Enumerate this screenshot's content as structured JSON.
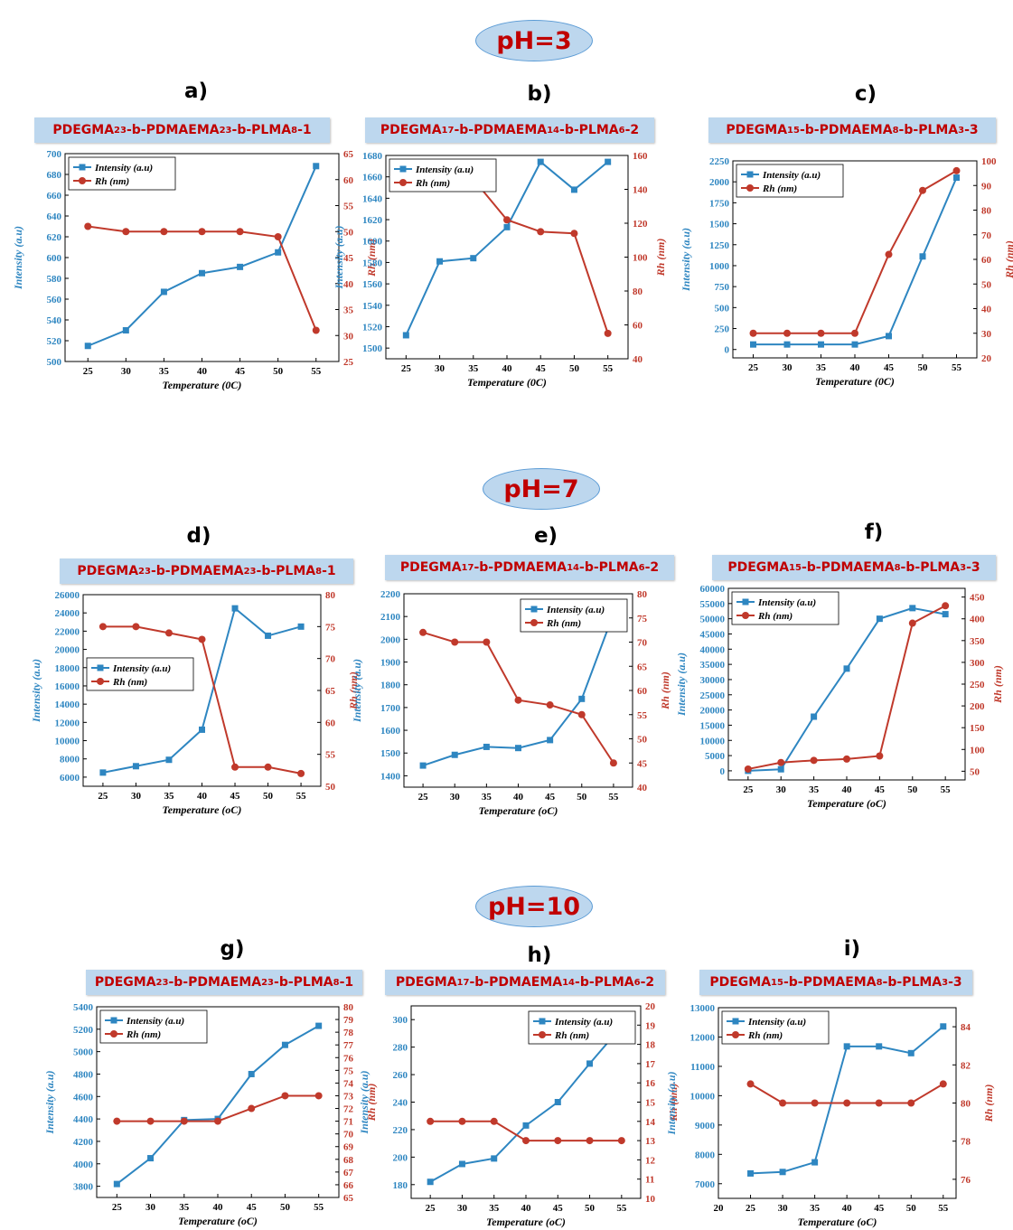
{
  "sections": [
    {
      "label": "pH=3",
      "panels": [
        {
          "letter": "a)",
          "title_pre": "PDEGMA",
          "title_parts": [
            [
              "PDEGMA",
              "23"
            ],
            [
              "-b-PDMAEMA",
              "23"
            ],
            [
              "-b-PLMA",
              "8"
            ],
            [
              "-1",
              ""
            ]
          ]
        },
        {
          "letter": "b)",
          "title_parts": [
            [
              "PDEGMA",
              "17"
            ],
            [
              "-b-PDMAEMA",
              "14"
            ],
            [
              "-b-PLMA",
              "6"
            ],
            [
              "-2",
              ""
            ]
          ]
        },
        {
          "letter": "c)",
          "title_parts": [
            [
              "PDEGMA",
              "15"
            ],
            [
              "-b-PDMAEMA",
              "8"
            ],
            [
              "-b-PLMA",
              "3"
            ],
            [
              "-3",
              ""
            ]
          ]
        }
      ]
    },
    {
      "label": "pH=7",
      "panels": [
        {
          "letter": "d)",
          "title_parts": [
            [
              "PDEGMA",
              "23"
            ],
            [
              "-b-PDMAEMA",
              "23"
            ],
            [
              "-b-PLMA",
              "8"
            ],
            [
              "-1",
              ""
            ]
          ]
        },
        {
          "letter": "e)",
          "title_parts": [
            [
              "PDEGMA",
              "17"
            ],
            [
              "-b-PDMAEMA",
              "14"
            ],
            [
              "-b-PLMA",
              "6"
            ],
            [
              "-2",
              ""
            ]
          ]
        },
        {
          "letter": "f)",
          "title_parts": [
            [
              "PDEGMA",
              "15"
            ],
            [
              "-b-PDMAEMA",
              "8"
            ],
            [
              "-b-PLMA",
              "3"
            ],
            [
              "-3",
              ""
            ]
          ]
        }
      ]
    },
    {
      "label": "pH=10",
      "panels": [
        {
          "letter": "g)",
          "title_parts": [
            [
              "PDEGMA",
              "23"
            ],
            [
              "-b-PDMAEMA",
              "23"
            ],
            [
              "-b-PLMA",
              "8"
            ],
            [
              "-1",
              ""
            ]
          ]
        },
        {
          "letter": "h)",
          "title_parts": [
            [
              "PDEGMA",
              "17"
            ],
            [
              "-b-PDMAEMA",
              "14"
            ],
            [
              "-b-PLMA",
              "6"
            ],
            [
              "-2",
              ""
            ]
          ]
        },
        {
          "letter": "i)",
          "title_parts": [
            [
              "PDEGMA",
              "15"
            ],
            [
              "-b-PDMAEMA",
              "8"
            ],
            [
              "-b-PLMA",
              "3"
            ],
            [
              "-3",
              ""
            ]
          ]
        }
      ]
    }
  ],
  "colors": {
    "intensity": "#2e86c1",
    "rh": "#c0392b",
    "title_bg": "#bdd7ee",
    "title_text": "#c00000"
  },
  "chart_data": [
    {
      "panel": "a)",
      "type": "line",
      "x": [
        25,
        30,
        35,
        40,
        45,
        50,
        55
      ],
      "xlabel": "Temperature (0C)",
      "ylabel_left": "Intensity (a.u)",
      "ylabel_right": "Rh (nm)",
      "ylim_left": [
        500,
        700
      ],
      "yticks_left": [
        500,
        520,
        540,
        560,
        580,
        600,
        620,
        640,
        660,
        680,
        700
      ],
      "ylim_right": [
        25,
        65
      ],
      "yticks_right": [
        25,
        30,
        35,
        40,
        45,
        50,
        55,
        60,
        65
      ],
      "legend_position": "top-left",
      "series": [
        {
          "name": "Intensity (a.u)",
          "axis": "left",
          "marker": "square",
          "values": [
            515,
            530,
            567,
            585,
            591,
            605,
            688
          ]
        },
        {
          "name": "Rh (nm)",
          "axis": "right",
          "marker": "circle",
          "values": [
            51,
            50,
            50,
            50,
            50,
            49,
            31
          ]
        }
      ]
    },
    {
      "panel": "b)",
      "type": "line",
      "x": [
        25,
        30,
        35,
        40,
        45,
        50,
        55
      ],
      "xlabel": "Temperature (0C)",
      "ylabel_left": "Intensity (a.u)",
      "ylabel_right": "Rh (nm)",
      "ylim_left": [
        1490,
        1680
      ],
      "yticks_left": [
        1500,
        1520,
        1540,
        1560,
        1580,
        1600,
        1620,
        1640,
        1660,
        1680
      ],
      "ylim_right": [
        40,
        160
      ],
      "yticks_right": [
        40,
        60,
        80,
        100,
        120,
        140,
        160
      ],
      "legend_position": "top-left",
      "series": [
        {
          "name": "Intensity (a.u)",
          "axis": "left",
          "marker": "square",
          "values": [
            1512,
            1581,
            1584,
            1613,
            1674,
            1648,
            1674
          ]
        },
        {
          "name": "Rh (nm)",
          "axis": "right",
          "marker": "circle",
          "values": [
            142,
            144,
            146,
            122,
            115,
            114,
            55
          ]
        }
      ]
    },
    {
      "panel": "c)",
      "type": "line",
      "x": [
        25,
        30,
        35,
        40,
        45,
        50,
        55
      ],
      "xlabel": "Temperature (0C)",
      "ylabel_left": "Intensity (a.u)",
      "ylabel_right": "Rh (nm)",
      "ylim_left": [
        -100,
        2250
      ],
      "yticks_left": [
        0,
        250,
        500,
        750,
        1000,
        1250,
        1500,
        1750,
        2000,
        2250
      ],
      "ylim_right": [
        20,
        100
      ],
      "yticks_right": [
        20,
        30,
        40,
        50,
        60,
        70,
        80,
        90,
        100
      ],
      "legend_position": "top-left",
      "series": [
        {
          "name": "Intensity (a.u)",
          "axis": "left",
          "marker": "square",
          "values": [
            60,
            60,
            60,
            60,
            160,
            1110,
            2050
          ]
        },
        {
          "name": "Rh (nm)",
          "axis": "right",
          "marker": "circle",
          "values": [
            30,
            30,
            30,
            30,
            62,
            88,
            96
          ]
        }
      ]
    },
    {
      "panel": "d)",
      "type": "line",
      "x": [
        25,
        30,
        35,
        40,
        45,
        50,
        55
      ],
      "xlabel": "Temperature (oC)",
      "ylabel_left": "Intensity (a.u)",
      "ylabel_right": "Rh (nm)",
      "ylim_left": [
        5000,
        26000
      ],
      "yticks_left": [
        6000,
        8000,
        10000,
        12000,
        14000,
        16000,
        18000,
        20000,
        22000,
        24000,
        26000
      ],
      "ylim_right": [
        50,
        80
      ],
      "yticks_right": [
        50,
        55,
        60,
        65,
        70,
        75,
        80
      ],
      "legend_position": "center-left",
      "series": [
        {
          "name": "Intensity (a.u)",
          "axis": "left",
          "marker": "square",
          "values": [
            6500,
            7200,
            7900,
            11200,
            24500,
            21500,
            22500
          ]
        },
        {
          "name": "Rh (nm)",
          "axis": "right",
          "marker": "circle",
          "values": [
            75,
            75,
            74,
            73,
            53,
            53,
            52
          ]
        }
      ]
    },
    {
      "panel": "e)",
      "type": "line",
      "x": [
        25,
        30,
        35,
        40,
        45,
        50,
        55
      ],
      "xlabel": "Temperature (oC)",
      "ylabel_left": "Intensity (a.u)",
      "ylabel_right": "Rh (nm)",
      "ylim_left": [
        1350,
        2200
      ],
      "yticks_left": [
        1400,
        1500,
        1600,
        1700,
        1800,
        1900,
        2000,
        2100,
        2200
      ],
      "ylim_right": [
        40,
        80
      ],
      "yticks_right": [
        40,
        45,
        50,
        55,
        60,
        65,
        70,
        75,
        80
      ],
      "legend_position": "top-right",
      "series": [
        {
          "name": "Intensity (a.u)",
          "axis": "left",
          "marker": "square",
          "values": [
            1445,
            1492,
            1527,
            1522,
            1557,
            1738,
            2112
          ]
        },
        {
          "name": "Rh (nm)",
          "axis": "right",
          "marker": "circle",
          "values": [
            72,
            70,
            70,
            58,
            57,
            55,
            45
          ]
        }
      ]
    },
    {
      "panel": "f)",
      "type": "line",
      "x": [
        25,
        30,
        35,
        40,
        45,
        50,
        55
      ],
      "xlabel": "Temperature (oC)",
      "ylabel_left": "Intensity (a.u)",
      "ylabel_right": "Rh (nm)",
      "ylim_left": [
        -3000,
        60000
      ],
      "yticks_left": [
        0,
        5000,
        10000,
        15000,
        20000,
        25000,
        30000,
        35000,
        40000,
        45000,
        50000,
        55000,
        60000
      ],
      "ylim_right": [
        30,
        470
      ],
      "yticks_right": [
        50,
        100,
        150,
        200,
        250,
        300,
        350,
        400,
        450
      ],
      "legend_position": "top-left",
      "series": [
        {
          "name": "Intensity (a.u)",
          "axis": "left",
          "marker": "square",
          "values": [
            0,
            500,
            17800,
            33600,
            50000,
            53500,
            51500
          ]
        },
        {
          "name": "Rh (nm)",
          "axis": "right",
          "marker": "circle",
          "values": [
            55,
            70,
            75,
            78,
            85,
            390,
            430
          ]
        }
      ]
    },
    {
      "panel": "g)",
      "type": "line",
      "x": [
        25,
        30,
        35,
        40,
        45,
        50,
        55
      ],
      "xlabel": "Temperature (oC)",
      "ylabel_left": "Intensity (a.u)",
      "ylabel_right": "Rh (nm)",
      "ylim_left": [
        3700,
        5400
      ],
      "yticks_left": [
        3800,
        4000,
        4200,
        4400,
        4600,
        4800,
        5000,
        5200,
        5400
      ],
      "ylim_right": [
        65,
        80
      ],
      "yticks_right": [
        65,
        66,
        67,
        68,
        69,
        70,
        71,
        72,
        73,
        74,
        75,
        76,
        77,
        78,
        79,
        80
      ],
      "legend_position": "top-left",
      "series": [
        {
          "name": "Intensity (a.u)",
          "axis": "left",
          "marker": "square",
          "values": [
            3820,
            4050,
            4390,
            4400,
            4800,
            5060,
            5230
          ]
        },
        {
          "name": "Rh (nm)",
          "axis": "right",
          "marker": "circle",
          "values": [
            71,
            71,
            71,
            71,
            72,
            73,
            73
          ]
        }
      ]
    },
    {
      "panel": "h)",
      "type": "line",
      "x": [
        25,
        30,
        35,
        40,
        45,
        50,
        55
      ],
      "xlabel": "Temperature (oC)",
      "ylabel_left": "Intensity (a.u)",
      "ylabel_right": "Rh (nm)",
      "ylim_left": [
        170,
        310
      ],
      "yticks_left": [
        180,
        200,
        220,
        240,
        260,
        280,
        300
      ],
      "ylim_right": [
        10,
        20
      ],
      "yticks_right": [
        10,
        11,
        12,
        13,
        14,
        15,
        16,
        17,
        18,
        19,
        20
      ],
      "legend_position": "top-right",
      "series": [
        {
          "name": "Intensity (a.u)",
          "axis": "left",
          "marker": "square",
          "values": [
            182,
            195,
            199,
            223,
            240,
            268,
            295
          ]
        },
        {
          "name": "Rh (nm)",
          "axis": "right",
          "marker": "circle",
          "values": [
            14,
            14,
            14,
            13,
            13,
            13,
            13
          ]
        }
      ]
    },
    {
      "panel": "i)",
      "type": "line",
      "x": [
        25,
        30,
        35,
        40,
        45,
        50,
        55
      ],
      "xlabel": "Temperature (oC)",
      "ylabel_left": "Intensity (a.u)",
      "ylabel_right": "Rh (nm)",
      "xlim": [
        20,
        57
      ],
      "xticks": [
        20,
        25,
        30,
        35,
        40,
        45,
        50,
        55
      ],
      "ylim_left": [
        6500,
        13000
      ],
      "yticks_left": [
        7000,
        8000,
        9000,
        10000,
        11000,
        12000,
        13000
      ],
      "ylim_right": [
        75,
        85
      ],
      "yticks_right": [
        76,
        78,
        80,
        82,
        84
      ],
      "legend_position": "top-left",
      "series": [
        {
          "name": "Intensity (a.u)",
          "axis": "left",
          "marker": "square",
          "values": [
            7350,
            7400,
            7730,
            11680,
            11680,
            11450,
            12360
          ]
        },
        {
          "name": "Rh (nm)",
          "axis": "right",
          "marker": "circle",
          "values": [
            81,
            80,
            80,
            80,
            80,
            80,
            81
          ]
        }
      ]
    }
  ]
}
